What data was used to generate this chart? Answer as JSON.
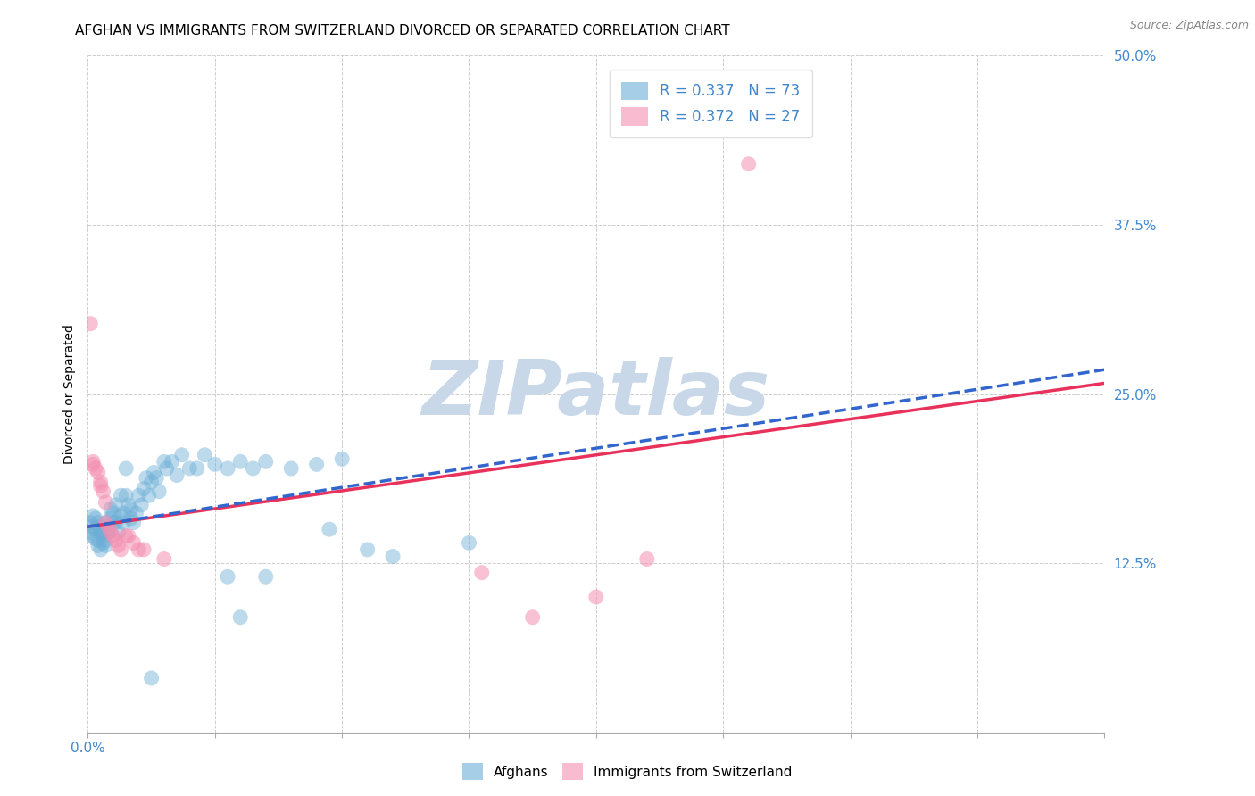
{
  "title": "AFGHAN VS IMMIGRANTS FROM SWITZERLAND DIVORCED OR SEPARATED CORRELATION CHART",
  "source": "Source: ZipAtlas.com",
  "ylabel": "Divorced or Separated",
  "watermark": "ZIPatlas",
  "xlim": [
    0.0,
    0.4
  ],
  "ylim": [
    0.0,
    0.5
  ],
  "xticks": [
    0.0,
    0.05,
    0.1,
    0.15,
    0.2,
    0.25,
    0.3,
    0.35,
    0.4
  ],
  "xtick_labels_shown": {
    "0.0": "0.0%"
  },
  "yticks": [
    0.0,
    0.125,
    0.25,
    0.375,
    0.5
  ],
  "ytick_labels": [
    "",
    "12.5%",
    "25.0%",
    "37.5%",
    "50.0%"
  ],
  "legend1_label": "R = 0.337   N = 73",
  "legend2_label": "R = 0.372   N = 27",
  "legend1_color": "#6baed6",
  "legend2_color": "#f48fb1",
  "line1_color": "#3366cc",
  "line2_color": "#e8315b",
  "grid_color": "#c8c8c8",
  "background_color": "#ffffff",
  "title_fontsize": 11,
  "axis_fontsize": 10,
  "tick_fontsize": 11,
  "tick_color": "#4488cc",
  "watermark_color": "#c8d8e8",
  "blue_points": [
    [
      0.001,
      0.155
    ],
    [
      0.001,
      0.148
    ],
    [
      0.002,
      0.16
    ],
    [
      0.002,
      0.152
    ],
    [
      0.002,
      0.145
    ],
    [
      0.003,
      0.158
    ],
    [
      0.003,
      0.143
    ],
    [
      0.003,
      0.15
    ],
    [
      0.004,
      0.155
    ],
    [
      0.004,
      0.138
    ],
    [
      0.004,
      0.142
    ],
    [
      0.005,
      0.148
    ],
    [
      0.005,
      0.135
    ],
    [
      0.005,
      0.152
    ],
    [
      0.006,
      0.14
    ],
    [
      0.006,
      0.148
    ],
    [
      0.006,
      0.145
    ],
    [
      0.007,
      0.138
    ],
    [
      0.007,
      0.155
    ],
    [
      0.007,
      0.142
    ],
    [
      0.008,
      0.15
    ],
    [
      0.008,
      0.148
    ],
    [
      0.009,
      0.165
    ],
    [
      0.009,
      0.158
    ],
    [
      0.01,
      0.155
    ],
    [
      0.01,
      0.162
    ],
    [
      0.011,
      0.168
    ],
    [
      0.011,
      0.155
    ],
    [
      0.012,
      0.148
    ],
    [
      0.013,
      0.175
    ],
    [
      0.013,
      0.16
    ],
    [
      0.014,
      0.155
    ],
    [
      0.014,
      0.162
    ],
    [
      0.015,
      0.175
    ],
    [
      0.015,
      0.195
    ],
    [
      0.016,
      0.168
    ],
    [
      0.017,
      0.158
    ],
    [
      0.017,
      0.165
    ],
    [
      0.018,
      0.155
    ],
    [
      0.019,
      0.162
    ],
    [
      0.02,
      0.175
    ],
    [
      0.021,
      0.168
    ],
    [
      0.022,
      0.18
    ],
    [
      0.023,
      0.188
    ],
    [
      0.024,
      0.175
    ],
    [
      0.025,
      0.185
    ],
    [
      0.026,
      0.192
    ],
    [
      0.027,
      0.188
    ],
    [
      0.028,
      0.178
    ],
    [
      0.03,
      0.2
    ],
    [
      0.031,
      0.195
    ],
    [
      0.033,
      0.2
    ],
    [
      0.035,
      0.19
    ],
    [
      0.037,
      0.205
    ],
    [
      0.04,
      0.195
    ],
    [
      0.043,
      0.195
    ],
    [
      0.046,
      0.205
    ],
    [
      0.05,
      0.198
    ],
    [
      0.055,
      0.195
    ],
    [
      0.06,
      0.2
    ],
    [
      0.065,
      0.195
    ],
    [
      0.07,
      0.2
    ],
    [
      0.08,
      0.195
    ],
    [
      0.09,
      0.198
    ],
    [
      0.1,
      0.202
    ],
    [
      0.025,
      0.04
    ],
    [
      0.055,
      0.115
    ],
    [
      0.07,
      0.115
    ],
    [
      0.11,
      0.135
    ],
    [
      0.12,
      0.13
    ],
    [
      0.095,
      0.15
    ],
    [
      0.15,
      0.14
    ],
    [
      0.06,
      0.085
    ]
  ],
  "pink_points": [
    [
      0.001,
      0.302
    ],
    [
      0.002,
      0.2
    ],
    [
      0.002,
      0.198
    ],
    [
      0.003,
      0.195
    ],
    [
      0.004,
      0.192
    ],
    [
      0.005,
      0.185
    ],
    [
      0.005,
      0.182
    ],
    [
      0.006,
      0.178
    ],
    [
      0.007,
      0.17
    ],
    [
      0.007,
      0.155
    ],
    [
      0.008,
      0.152
    ],
    [
      0.009,
      0.148
    ],
    [
      0.01,
      0.145
    ],
    [
      0.011,
      0.142
    ],
    [
      0.012,
      0.138
    ],
    [
      0.013,
      0.135
    ],
    [
      0.015,
      0.145
    ],
    [
      0.016,
      0.145
    ],
    [
      0.018,
      0.14
    ],
    [
      0.02,
      0.135
    ],
    [
      0.022,
      0.135
    ],
    [
      0.03,
      0.128
    ],
    [
      0.26,
      0.42
    ],
    [
      0.155,
      0.118
    ],
    [
      0.2,
      0.1
    ],
    [
      0.175,
      0.085
    ],
    [
      0.22,
      0.128
    ]
  ],
  "blue_line": [
    [
      0.0,
      0.152
    ],
    [
      0.4,
      0.268
    ]
  ],
  "pink_line": [
    [
      0.0,
      0.152
    ],
    [
      0.4,
      0.258
    ]
  ]
}
